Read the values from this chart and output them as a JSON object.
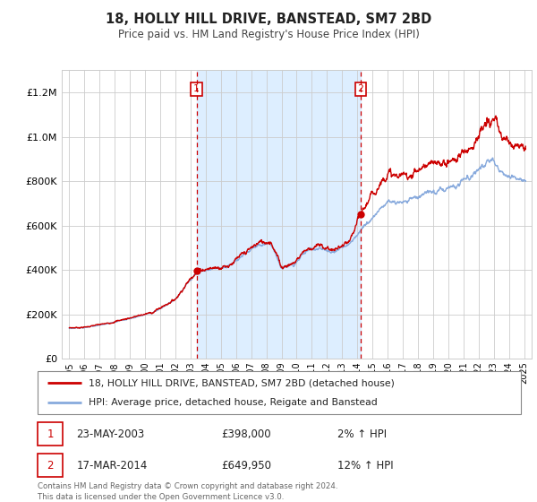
{
  "title": "18, HOLLY HILL DRIVE, BANSTEAD, SM7 2BD",
  "subtitle": "Price paid vs. HM Land Registry's House Price Index (HPI)",
  "legend_label_red": "18, HOLLY HILL DRIVE, BANSTEAD, SM7 2BD (detached house)",
  "legend_label_blue": "HPI: Average price, detached house, Reigate and Banstead",
  "sale1_date": "23-MAY-2003",
  "sale1_price": "£398,000",
  "sale1_hpi": "2% ↑ HPI",
  "sale1_year": 2003.39,
  "sale1_value": 398000,
  "sale2_date": "17-MAR-2014",
  "sale2_price": "£649,950",
  "sale2_hpi": "12% ↑ HPI",
  "sale2_year": 2014.21,
  "sale2_value": 649950,
  "footer1": "Contains HM Land Registry data © Crown copyright and database right 2024.",
  "footer2": "This data is licensed under the Open Government Licence v3.0.",
  "color_red": "#cc0000",
  "color_blue": "#88aadd",
  "color_bg_highlight": "#ddeeff",
  "color_vline": "#cc0000",
  "ylim_max": 1300000,
  "xlim_min": 1994.5,
  "xlim_max": 2025.5
}
